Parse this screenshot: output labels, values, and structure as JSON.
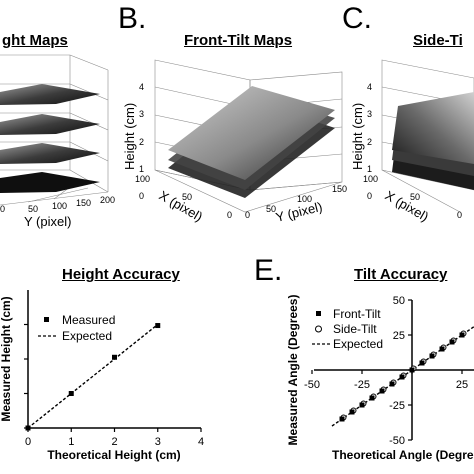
{
  "panels": {
    "a": {
      "title": "Height Maps",
      "title_visible": "ght Maps",
      "y_label": "Y (pixel)",
      "y_ticks": [
        "0",
        "50",
        "100",
        "150",
        "200"
      ]
    },
    "b": {
      "letter": "B.",
      "title": "Front-Tilt Maps",
      "z_label": "Height (cm)",
      "z_ticks": [
        "0",
        "1",
        "2",
        "3",
        "4"
      ],
      "x_label": "X (pixel)",
      "x_ticks": [
        "100",
        "50",
        "0"
      ],
      "y_label": "Y (pixel)",
      "y_ticks": [
        "0",
        "50",
        "100",
        "150"
      ]
    },
    "c": {
      "letter": "C.",
      "title": "Side-Ti",
      "z_label": "Height (cm)",
      "z_ticks": [
        "0",
        "1",
        "2",
        "3",
        "4"
      ],
      "x_label": "X (pixel)",
      "x_ticks": [
        "100",
        "50",
        "0"
      ]
    },
    "d": {
      "title": "Height Accuracy"
    },
    "e": {
      "letter": "E.",
      "title": "Tilt Accuracy"
    }
  },
  "chart_data": [
    {
      "type": "scatter",
      "panel": "D",
      "title": "Height Accuracy",
      "xlabel": "Theoretical Height (cm)",
      "ylabel": "Measured Height (cm)",
      "xlim": [
        0,
        4
      ],
      "ylim": [
        0,
        4
      ],
      "x_ticks": [
        "0",
        "1",
        "2",
        "3",
        "4"
      ],
      "y_ticks": [
        "0",
        "1",
        "2",
        "3"
      ],
      "series": [
        {
          "name": "Measured",
          "marker": "square",
          "x": [
            0,
            1,
            2,
            3
          ],
          "y": [
            0,
            1.0,
            2.05,
            2.97
          ]
        },
        {
          "name": "Expected",
          "style": "dashed-line",
          "x": [
            0,
            3
          ],
          "y": [
            0,
            3
          ]
        }
      ],
      "legend": "upper-left"
    },
    {
      "type": "scatter",
      "panel": "E",
      "title": "Tilt Accuracy",
      "xlabel": "Theoretical Angle (Degrees)",
      "xlabel_visible": "Theoretical Angle (Degre",
      "ylabel": "Measured Angle (Degrees)",
      "xlim": [
        -50,
        50
      ],
      "ylim": [
        -50,
        50
      ],
      "x_ticks": [
        "-50",
        "-25",
        "0",
        "25"
      ],
      "y_ticks": [
        "-50",
        "-25",
        "0",
        "25",
        "50"
      ],
      "series": [
        {
          "name": "Front-Tilt",
          "marker": "square",
          "x": [
            -35,
            -30,
            -25,
            -20,
            -15,
            -10,
            -5,
            0,
            5,
            10,
            15,
            20,
            25,
            30,
            35
          ],
          "y": [
            -35,
            -30,
            -25,
            -20,
            -15,
            -10,
            -5,
            0,
            5,
            10,
            15,
            20,
            25,
            30,
            35
          ]
        },
        {
          "name": "Side-Tilt",
          "marker": "open-circle",
          "x": [
            -35,
            -30,
            -25,
            -20,
            -15,
            -10,
            -5,
            0,
            5,
            10,
            15,
            20,
            25,
            30,
            35
          ],
          "y": [
            -35,
            -30,
            -25,
            -20,
            -15,
            -10,
            -5,
            0,
            5,
            10,
            15,
            20,
            25,
            30,
            35
          ]
        },
        {
          "name": "Expected",
          "style": "dashed-line",
          "x": [
            -40,
            40
          ],
          "y": [
            -40,
            40
          ]
        }
      ],
      "legend": "upper-left"
    }
  ]
}
